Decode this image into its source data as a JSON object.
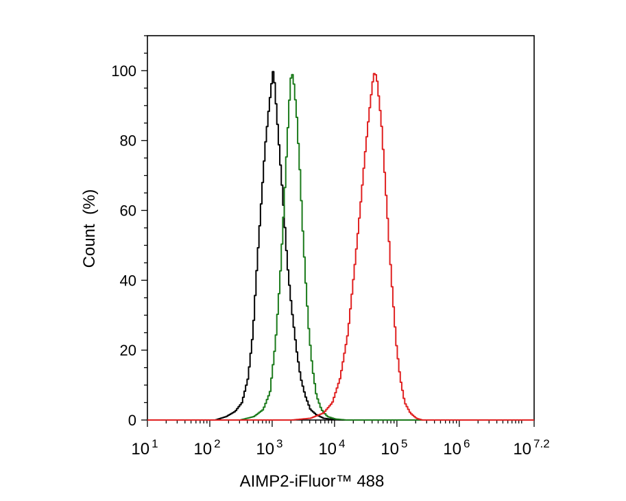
{
  "chart_data": {
    "type": "line",
    "title": "",
    "xlabel": "AIMP2-iFluor™ 488",
    "ylabel": "Count  (%)",
    "x_scale": "log10",
    "xlim": [
      10,
      15848931.92
    ],
    "ylim": [
      0,
      110
    ],
    "grid": false,
    "legend": "none",
    "y_ticks": [
      0,
      20,
      40,
      60,
      80,
      100
    ],
    "y_tick_labels": [
      "0",
      "20",
      "40",
      "60",
      "80",
      "100"
    ],
    "x_ticks": [
      {
        "base": "10",
        "exp": "1",
        "value": 10
      },
      {
        "base": "10",
        "exp": "2",
        "value": 100
      },
      {
        "base": "10",
        "exp": "3",
        "value": 1000
      },
      {
        "base": "10",
        "exp": "4",
        "value": 10000
      },
      {
        "base": "10",
        "exp": "5",
        "value": 100000
      },
      {
        "base": "10",
        "exp": "6",
        "value": 1000000
      },
      {
        "base": "10",
        "exp": "7.2",
        "value": 15848931.92
      }
    ],
    "series": [
      {
        "color": "#000000",
        "x": [
          120,
          180,
          250,
          320,
          400,
          480,
          560,
          650,
          750,
          850,
          950,
          1000,
          1050,
          1150,
          1300,
          1500,
          1700,
          2000,
          2400,
          2800,
          3300,
          4000,
          5000,
          6500,
          9000,
          13000
        ],
        "y": [
          0,
          1,
          2.5,
          5,
          12,
          25,
          45,
          62,
          78,
          88,
          96,
          100,
          98,
          88,
          75,
          60,
          45,
          32,
          20,
          12,
          7,
          3,
          1.5,
          0.5,
          0.2,
          0
        ]
      },
      {
        "color": "#1a7a1a",
        "x": [
          300,
          500,
          700,
          900,
          1100,
          1300,
          1500,
          1700,
          1900,
          2000,
          2150,
          2400,
          2700,
          3000,
          3400,
          3800,
          4300,
          5000,
          6000,
          7500,
          10000,
          15000
        ],
        "y": [
          0,
          1,
          3,
          8,
          22,
          40,
          60,
          80,
          96,
          100,
          97,
          88,
          72,
          55,
          38,
          25,
          15,
          7,
          3,
          1,
          0.3,
          0
        ]
      },
      {
        "color": "#e02020",
        "x": [
          2000,
          4000,
          6500,
          9000,
          12000,
          16000,
          20000,
          25000,
          30000,
          35000,
          40000,
          43000,
          47000,
          55000,
          65000,
          80000,
          95000,
          110000,
          130000,
          160000,
          200000,
          250000
        ],
        "y": [
          0,
          0.5,
          2,
          5,
          12,
          25,
          42,
          60,
          76,
          88,
          97,
          100,
          97,
          85,
          65,
          40,
          22,
          12,
          5,
          2,
          0.5,
          0
        ]
      }
    ]
  }
}
